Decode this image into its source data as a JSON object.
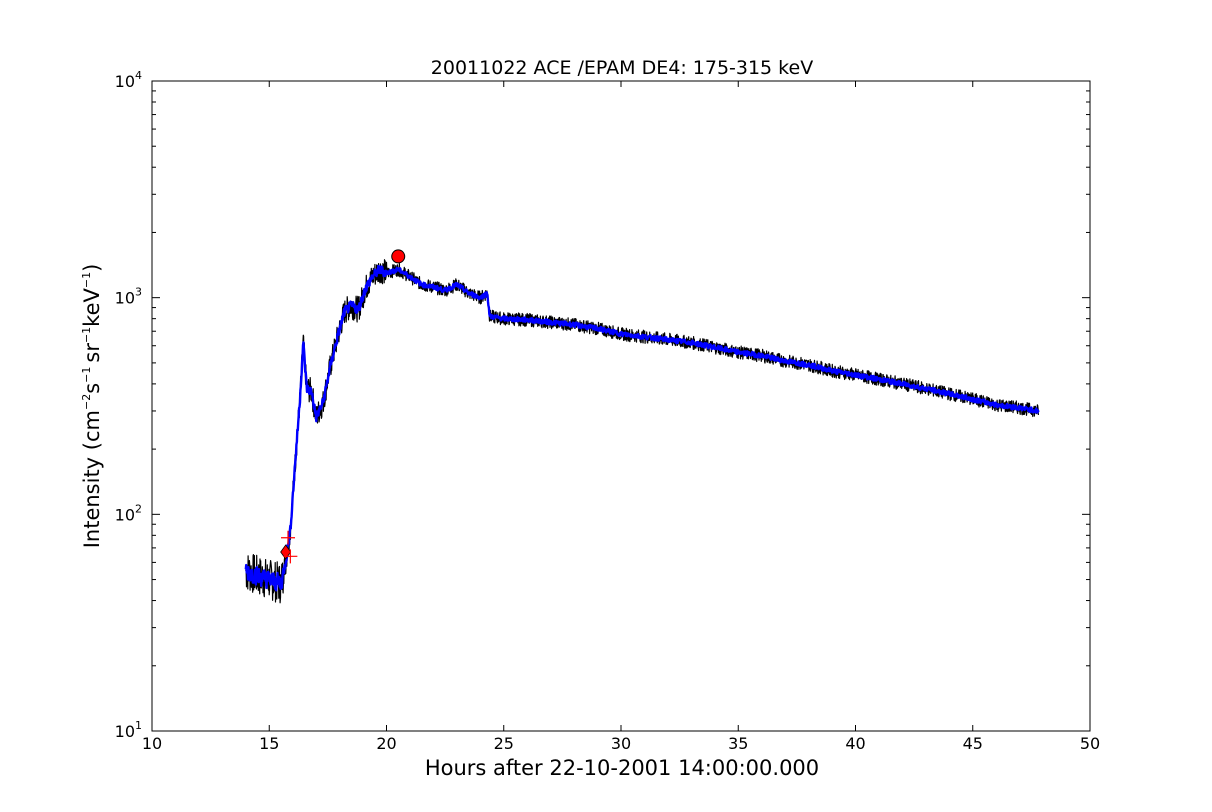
{
  "chart_data": {
    "type": "line",
    "title": "20011022 ACE /EPAM DE4: 175-315 keV",
    "xlabel": "Hours after 22-10-2001 14:00:00.000",
    "ylabel_parts": {
      "base": "Intensity (cm",
      "exp1": "−2",
      "mid1": "s",
      "exp2": "−1",
      "mid2": "sr",
      "exp3": "−1",
      "mid3": "keV",
      "exp4": "−1",
      "end": ")"
    },
    "xlim": [
      10,
      50
    ],
    "ylim": [
      10,
      10000
    ],
    "yscale": "log",
    "grid": false,
    "x_ticks": [
      "10",
      "15",
      "20",
      "25",
      "30",
      "35",
      "40",
      "45",
      "50"
    ],
    "y_ticks": [
      {
        "base": "10",
        "exp": "1"
      },
      {
        "base": "10",
        "exp": "2"
      },
      {
        "base": "10",
        "exp": "3"
      },
      {
        "base": "10",
        "exp": "4"
      }
    ],
    "colors": {
      "raw": "#000000",
      "smoothed": "#0000ff",
      "markers": "#ff0000"
    },
    "series": [
      {
        "style": "raw",
        "color": "#000000",
        "x": [
          14.0,
          14.5,
          15.0,
          15.5,
          15.7,
          15.9,
          16.1,
          16.3,
          16.45,
          16.6,
          16.8,
          17.0,
          17.3,
          17.6,
          17.9,
          18.2,
          18.5,
          18.8,
          19.1,
          19.4,
          19.7,
          20.0,
          20.5,
          21.0,
          21.5,
          22.0,
          22.5,
          23.0,
          23.5,
          24.0,
          24.3,
          24.4,
          25,
          26,
          27,
          28,
          29,
          30,
          31,
          32,
          33,
          34,
          35,
          36,
          37,
          38,
          39,
          40,
          41,
          42,
          43,
          44,
          45,
          46,
          47,
          47.8
        ],
        "y": [
          55,
          52,
          50,
          48,
          60,
          85,
          170,
          330,
          620,
          380,
          370,
          280,
          330,
          480,
          650,
          860,
          920,
          880,
          1100,
          1250,
          1350,
          1300,
          1350,
          1250,
          1150,
          1120,
          1080,
          1150,
          1050,
          1000,
          1050,
          820,
          800,
          790,
          770,
          750,
          720,
          680,
          660,
          640,
          620,
          590,
          560,
          540,
          510,
          490,
          460,
          440,
          420,
          400,
          380,
          360,
          340,
          320,
          310,
          300
        ]
      },
      {
        "style": "smoothed",
        "color": "#0000ff",
        "x": [
          14.0,
          14.5,
          15.0,
          15.5,
          15.7,
          15.9,
          16.1,
          16.3,
          16.45,
          16.6,
          16.8,
          17.0,
          17.3,
          17.6,
          17.9,
          18.2,
          18.5,
          18.8,
          19.1,
          19.4,
          19.7,
          20.0,
          20.5,
          21.0,
          21.5,
          22.0,
          22.5,
          23.0,
          23.5,
          24.0,
          24.3,
          24.4,
          25,
          26,
          27,
          28,
          29,
          30,
          31,
          32,
          33,
          34,
          35,
          36,
          37,
          38,
          39,
          40,
          41,
          42,
          43,
          44,
          45,
          46,
          47,
          47.8
        ],
        "y": [
          55,
          52,
          50,
          48,
          60,
          85,
          170,
          330,
          620,
          380,
          370,
          280,
          330,
          480,
          650,
          860,
          920,
          880,
          1100,
          1250,
          1350,
          1300,
          1350,
          1250,
          1150,
          1120,
          1080,
          1150,
          1050,
          1000,
          1050,
          820,
          800,
          790,
          770,
          750,
          720,
          680,
          660,
          640,
          620,
          590,
          560,
          540,
          510,
          490,
          460,
          440,
          420,
          400,
          380,
          360,
          340,
          320,
          310,
          300
        ]
      }
    ],
    "markers": [
      {
        "kind": "circle",
        "x": 20.5,
        "y": 1550,
        "color": "#ff0000"
      },
      {
        "kind": "diamond",
        "x": 15.7,
        "y": 67,
        "color": "#ff0000"
      },
      {
        "kind": "plus",
        "x": 15.8,
        "y": 78,
        "color": "#ff0000"
      },
      {
        "kind": "plus",
        "x": 15.9,
        "y": 64,
        "color": "#ff0000"
      }
    ]
  }
}
